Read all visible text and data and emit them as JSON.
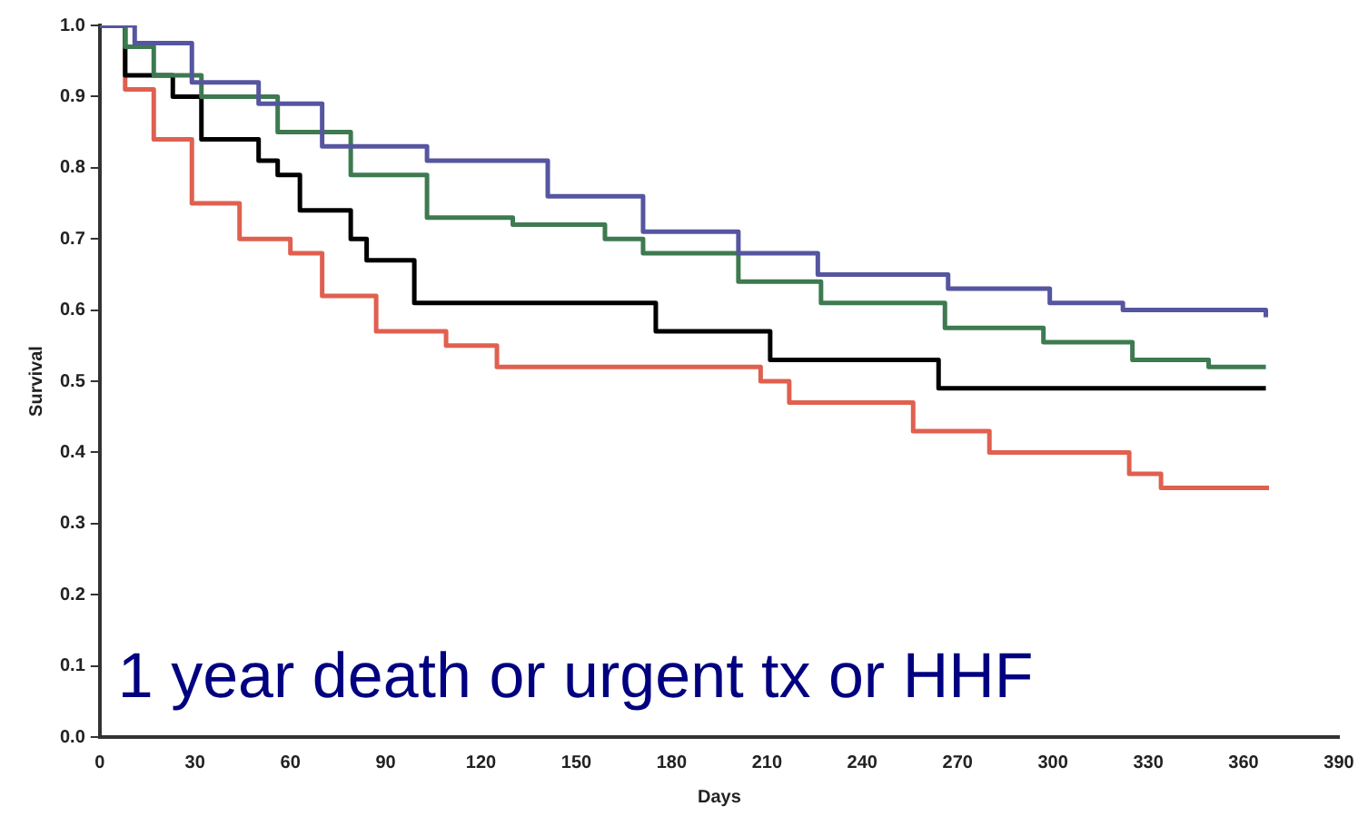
{
  "chart_data": {
    "type": "step",
    "xlabel": "Days",
    "ylabel": "Survival",
    "xlim": [
      0,
      390
    ],
    "xticks": [
      0,
      30,
      60,
      90,
      120,
      150,
      180,
      210,
      240,
      270,
      300,
      330,
      360,
      390
    ],
    "ylim": [
      0,
      1
    ],
    "yticks": [
      {
        "value": 0,
        "label": "0.0"
      },
      {
        "value": 0.1,
        "label": "0.1"
      },
      {
        "value": 0.2,
        "label": "0.2"
      },
      {
        "value": 0.3,
        "label": "0.3"
      },
      {
        "value": 0.4,
        "label": "0.4"
      },
      {
        "value": 0.5,
        "label": "0.5"
      },
      {
        "value": 0.6,
        "label": "0.6"
      },
      {
        "value": 0.7,
        "label": "0.7"
      },
      {
        "value": 0.8,
        "label": "0.8"
      },
      {
        "value": 0.9,
        "label": "0.9"
      },
      {
        "value": 1,
        "label": "1.0"
      }
    ],
    "grid": false,
    "legend": false,
    "annotations": [
      "1 year death or urgent tx or HHF"
    ],
    "series": [
      {
        "color": "#5555a0",
        "x": [
          0,
          11,
          29,
          50,
          70,
          103,
          141,
          171,
          201,
          226,
          267,
          299,
          322,
          367
        ],
        "values": [
          1.0,
          0.975,
          0.92,
          0.89,
          0.83,
          0.81,
          0.76,
          0.71,
          0.68,
          0.65,
          0.63,
          0.61,
          0.6,
          0.59
        ]
      },
      {
        "color": "#3d7a50",
        "x": [
          0,
          8,
          17,
          32,
          56,
          79,
          103,
          130,
          159,
          171,
          201,
          227,
          266,
          297,
          325,
          349,
          367
        ],
        "values": [
          1.0,
          0.97,
          0.93,
          0.9,
          0.85,
          0.79,
          0.73,
          0.72,
          0.7,
          0.68,
          0.64,
          0.61,
          0.575,
          0.555,
          0.53,
          0.52,
          0.52
        ]
      },
      {
        "color": "#000000",
        "x": [
          0,
          8,
          23,
          32,
          50,
          56,
          63,
          79,
          84,
          99,
          175,
          211,
          264,
          367
        ],
        "values": [
          1.0,
          0.93,
          0.9,
          0.84,
          0.81,
          0.79,
          0.74,
          0.7,
          0.67,
          0.61,
          0.57,
          0.53,
          0.49,
          0.49
        ]
      },
      {
        "color": "#e06050",
        "x": [
          0,
          8,
          17,
          29,
          44,
          60,
          70,
          87,
          109,
          125,
          208,
          217,
          256,
          280,
          324,
          334,
          368
        ],
        "values": [
          1.0,
          0.91,
          0.84,
          0.75,
          0.7,
          0.68,
          0.62,
          0.57,
          0.55,
          0.52,
          0.5,
          0.47,
          0.43,
          0.4,
          0.37,
          0.35,
          0.35
        ]
      }
    ]
  }
}
